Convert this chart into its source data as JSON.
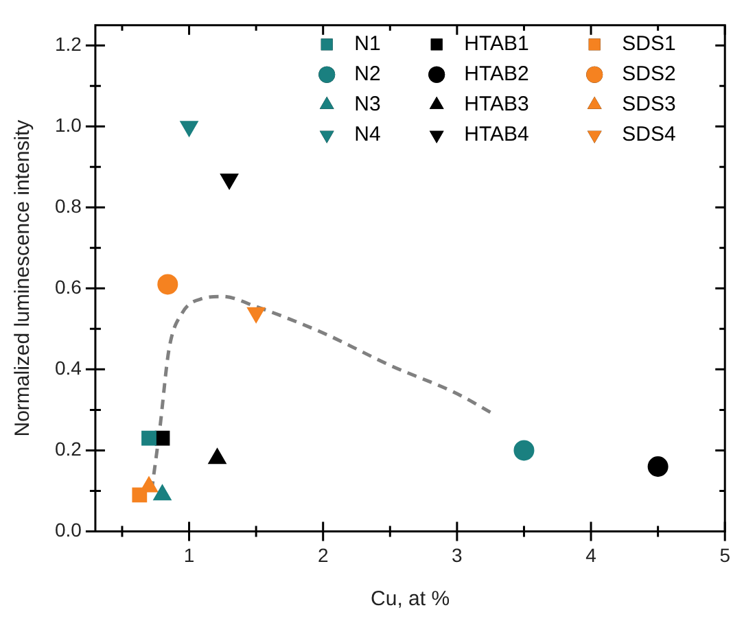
{
  "chart_data": {
    "type": "scatter",
    "xlabel": "Cu, at %",
    "ylabel": "Normalized luminescence intensity",
    "xlim": [
      0.3,
      5
    ],
    "xticks": [
      {
        "value": 0.5,
        "label": null
      },
      1,
      {
        "value": 1.5,
        "label": null
      },
      2,
      {
        "value": 2.5,
        "label": null
      },
      3,
      {
        "value": 3.5,
        "label": null
      },
      4,
      {
        "value": 4.5,
        "label": null
      },
      5
    ],
    "ylim": [
      0,
      1.25
    ],
    "yticks": [
      {
        "value": 0,
        "label": "0.0"
      },
      {
        "value": 0.1,
        "label": null
      },
      {
        "value": 0.2,
        "label": "0.2"
      },
      {
        "value": 0.3,
        "label": null
      },
      {
        "value": 0.4,
        "label": "0.4"
      },
      {
        "value": 0.5,
        "label": null
      },
      {
        "value": 0.6,
        "label": "0.6"
      },
      {
        "value": 0.7,
        "label": null
      },
      {
        "value": 0.8,
        "label": "0.8"
      },
      {
        "value": 0.9,
        "label": null
      },
      {
        "value": 1.0,
        "label": "1.0"
      },
      {
        "value": 1.1,
        "label": null
      },
      {
        "value": 1.2,
        "label": "1.2"
      }
    ],
    "grid": false,
    "legend": "top right",
    "series": [
      {
        "name": "N1",
        "color": "#1a8080",
        "marker": "square",
        "x": [
          0.7
        ],
        "values": [
          0.23
        ]
      },
      {
        "name": "N2",
        "color": "#1a8080",
        "marker": "circle",
        "x": [
          3.5
        ],
        "values": [
          0.2
        ]
      },
      {
        "name": "N3",
        "color": "#1a8080",
        "marker": "triangle",
        "x": [
          0.8
        ],
        "values": [
          0.09
        ]
      },
      {
        "name": "N4",
        "color": "#1a8080",
        "marker": "triangle-down",
        "x": [
          1.0
        ],
        "values": [
          1.0
        ]
      },
      {
        "name": "HTAB1",
        "color": "#000000",
        "marker": "square",
        "x": [
          0.8
        ],
        "values": [
          0.23
        ]
      },
      {
        "name": "HTAB2",
        "color": "#000000",
        "marker": "circle",
        "x": [
          4.5
        ],
        "values": [
          0.16
        ]
      },
      {
        "name": "HTAB3",
        "color": "#000000",
        "marker": "triangle",
        "x": [
          1.21
        ],
        "values": [
          0.18
        ]
      },
      {
        "name": "HTAB4",
        "color": "#000000",
        "marker": "triangle-down",
        "x": [
          1.3
        ],
        "values": [
          0.87
        ]
      },
      {
        "name": "SDS1",
        "color": "#f58220",
        "marker": "square",
        "x": [
          0.63
        ],
        "values": [
          0.09
        ]
      },
      {
        "name": "SDS2",
        "color": "#f58220",
        "marker": "circle",
        "x": [
          0.84
        ],
        "values": [
          0.61
        ]
      },
      {
        "name": "SDS3",
        "color": "#f58220",
        "marker": "triangle",
        "x": [
          0.7
        ],
        "values": [
          0.11
        ]
      },
      {
        "name": "SDS4",
        "color": "#f58220",
        "marker": "triangle-down",
        "x": [
          1.5
        ],
        "values": [
          0.54
        ]
      },
      {
        "type": "line",
        "color": "#808080",
        "line_style": "dashed",
        "marker": "none",
        "x": [
          0.72,
          0.78,
          0.85,
          0.95,
          1.1,
          1.25,
          1.5,
          2,
          2.5,
          3,
          3.27
        ],
        "values": [
          0.1,
          0.25,
          0.45,
          0.54,
          0.575,
          0.58,
          0.555,
          0.49,
          0.41,
          0.34,
          0.29
        ]
      }
    ]
  }
}
